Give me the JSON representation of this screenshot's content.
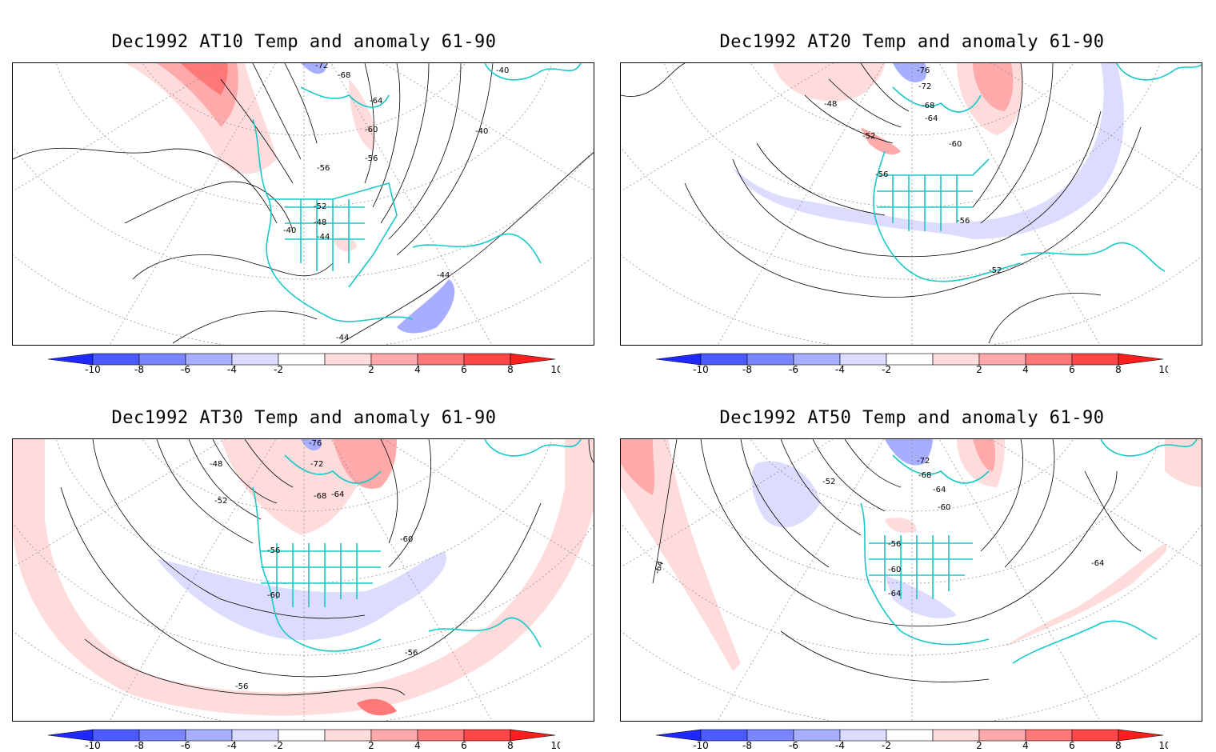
{
  "panels": [
    {
      "title": "Dec1992 AT10 Temp and anomaly 61-90",
      "contour_labels": [
        "-72",
        "-68",
        "-64",
        "-60",
        "-56",
        "-56",
        "-52",
        "-48",
        "-44",
        "-40",
        "-40",
        "-44",
        "-44",
        "-40"
      ]
    },
    {
      "title": "Dec1992 AT20 Temp and anomaly 61-90",
      "contour_labels": [
        "-76",
        "-72",
        "-68",
        "-64",
        "-60",
        "-48",
        "-52",
        "-56",
        "-56",
        "-52"
      ]
    },
    {
      "title": "Dec1992 AT30 Temp and anomaly 61-90",
      "contour_labels": [
        "-76",
        "-72",
        "-48",
        "-68",
        "-64",
        "-52",
        "-60",
        "-56",
        "-60",
        "-56",
        "-56"
      ]
    },
    {
      "title": "Dec1992 AT50 Temp and anomaly 61-90",
      "contour_labels": [
        "-72",
        "-68",
        "-64",
        "-52",
        "-60",
        "-56",
        "-60",
        "-64",
        "-64",
        "-64"
      ]
    }
  ],
  "colorbar": {
    "tick_labels": [
      "-10",
      "-8",
      "-6",
      "-4",
      "-2",
      "2",
      "4",
      "6",
      "8",
      "10"
    ],
    "colors": [
      "#1e28ff",
      "#4a5cff",
      "#7a86ff",
      "#a8aeff",
      "#dcdcff",
      "#ffffff",
      "#ffdcdc",
      "#ffaaaa",
      "#ff7878",
      "#ff4646",
      "#ff1e1e"
    ]
  },
  "colors": {
    "coastline": "#19c8c8",
    "frame": "#000000",
    "contour": "#000000",
    "grid": "#888888"
  }
}
